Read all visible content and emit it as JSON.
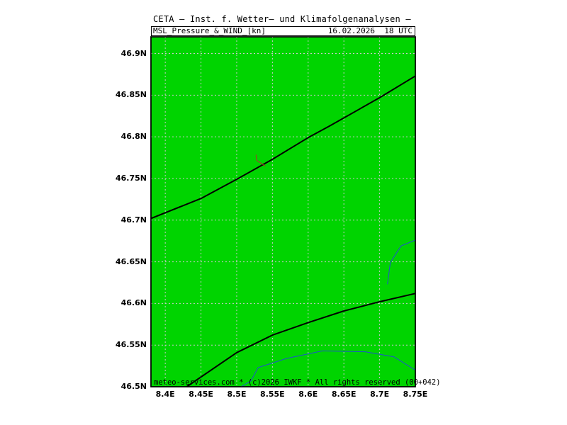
{
  "header": {
    "title": "CETA — Inst. f. Wetter— und Klimafolgenanalysen —",
    "parameter": "MSL_Pressure_&_WIND_[kn]",
    "valid_time": "16.02.2026  18 UTC"
  },
  "footer": {
    "credit": "meteo-services.com * (c)2026 IWKF * All rights reserved (00+042)"
  },
  "colors": {
    "land_fill": "#00d400",
    "grid": "#c8c8c8",
    "isobar": "#000000",
    "water": "#2050d0",
    "wind_barb": "#b03030"
  },
  "map": {
    "lon_ticks": [
      "8.4E",
      "8.45E",
      "8.5E",
      "8.55E",
      "8.6E",
      "8.65E",
      "8.7E",
      "8.75E"
    ],
    "lat_ticks": [
      "46.9N",
      "46.85N",
      "46.8N",
      "46.75N",
      "46.7N",
      "46.65N",
      "46.6N",
      "46.55N",
      "46.5N"
    ],
    "lon_range": [
      8.38,
      8.75
    ],
    "lat_range": [
      46.5,
      46.92
    ],
    "grid": true,
    "isobars": [
      {
        "points": [
          [
            8.38,
            46.702
          ],
          [
            8.45,
            46.726
          ],
          [
            8.5,
            46.749
          ],
          [
            8.55,
            46.773
          ],
          [
            8.6,
            46.799
          ],
          [
            8.63,
            46.813
          ],
          [
            8.7,
            46.847
          ],
          [
            8.75,
            46.873
          ]
        ]
      },
      {
        "points": [
          [
            8.43,
            46.5
          ],
          [
            8.5,
            46.541
          ],
          [
            8.55,
            46.562
          ],
          [
            8.6,
            46.577
          ],
          [
            8.65,
            46.591
          ],
          [
            8.7,
            46.602
          ],
          [
            8.75,
            46.612
          ]
        ]
      }
    ],
    "water_lines": [
      {
        "points": [
          [
            8.506,
            46.5
          ],
          [
            8.52,
            46.507
          ],
          [
            8.53,
            46.523
          ],
          [
            8.57,
            46.534
          ],
          [
            8.62,
            46.543
          ],
          [
            8.68,
            46.542
          ],
          [
            8.72,
            46.536
          ],
          [
            8.75,
            46.52
          ]
        ]
      },
      {
        "points": [
          [
            8.711,
            46.623
          ],
          [
            8.715,
            46.649
          ],
          [
            8.73,
            46.669
          ],
          [
            8.75,
            46.676
          ]
        ]
      }
    ],
    "wind_barbs": [
      {
        "lon": 8.53,
        "lat": 46.77,
        "dir_deg": 300
      }
    ]
  }
}
